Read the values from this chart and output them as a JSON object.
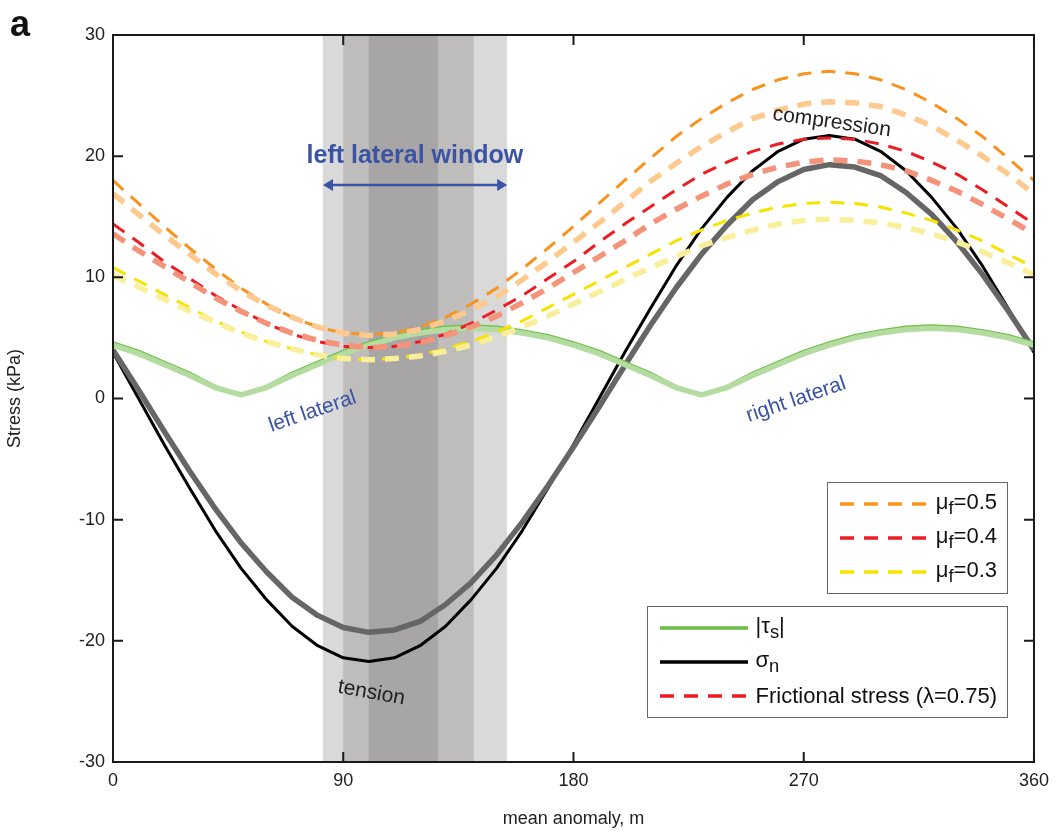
{
  "chart_data": {
    "type": "line",
    "xlabel": "mean anomaly, m",
    "ylabel": "Stress (kPa)",
    "x": [
      0,
      10,
      20,
      30,
      40,
      50,
      60,
      70,
      80,
      90,
      100,
      110,
      120,
      130,
      140,
      150,
      160,
      170,
      180,
      190,
      200,
      210,
      220,
      230,
      240,
      250,
      260,
      270,
      280,
      290,
      300,
      310,
      320,
      330,
      340,
      350,
      360
    ],
    "xlim": [
      0,
      360
    ],
    "xticks": [
      0,
      90,
      180,
      270,
      360
    ],
    "ylim": [
      -30,
      30
    ],
    "yticks": [
      -30,
      -20,
      -10,
      0,
      10,
      20,
      30
    ],
    "grid": false,
    "legend": "bottom right",
    "marker": "none",
    "bands": [
      {
        "axis": "x",
        "from": 82,
        "to": 154,
        "label": "left lateral window",
        "color": "#d9d9d9"
      },
      {
        "axis": "x",
        "from": 90,
        "to": 141,
        "color": "#bfbcbc"
      },
      {
        "axis": "x",
        "from": 100,
        "to": 127,
        "color": "#a8a5a6"
      }
    ],
    "series": [
      {
        "color": "#fdc98f",
        "line_style": "dashed",
        "values": [
          16.9,
          15.2,
          13.5,
          11.9,
          10.3,
          8.9,
          7.7,
          6.7,
          5.9,
          5.4,
          5.2,
          5.3,
          5.7,
          6.4,
          7.3,
          8.4,
          9.8,
          11.3,
          12.9,
          14.5,
          16.2,
          17.9,
          19.4,
          20.8,
          22.0,
          23.1,
          23.8,
          24.3,
          24.5,
          24.4,
          24.1,
          23.4,
          22.5,
          21.3,
          20.0,
          18.5,
          16.9
        ]
      },
      {
        "name": "μ$_{f}$=0.5",
        "color": "#f7931e",
        "line_style": "dashed",
        "values": [
          18.0,
          16.1,
          14.2,
          12.4,
          10.7,
          9.1,
          7.8,
          6.7,
          5.9,
          5.4,
          5.3,
          5.4,
          5.9,
          6.7,
          7.8,
          9.1,
          10.7,
          12.4,
          14.2,
          16.1,
          18.0,
          19.8,
          21.6,
          23.1,
          24.4,
          25.5,
          26.3,
          26.8,
          27.0,
          26.8,
          26.3,
          25.5,
          24.4,
          23.1,
          21.6,
          19.8,
          18.0
        ]
      },
      {
        "color": "#f4937a",
        "line_style": "dashed",
        "values": [
          13.6,
          12.2,
          10.9,
          9.6,
          8.3,
          7.2,
          6.2,
          5.4,
          4.8,
          4.4,
          4.2,
          4.3,
          4.6,
          5.2,
          5.9,
          6.8,
          7.9,
          9.1,
          10.4,
          11.7,
          13.0,
          14.4,
          15.6,
          16.7,
          17.7,
          18.5,
          19.1,
          19.5,
          19.7,
          19.6,
          19.3,
          18.8,
          18.0,
          17.1,
          16.0,
          14.8,
          13.6
        ]
      },
      {
        "name": "μ$_{f}$=0.4",
        "color": "#ec1c24",
        "line_style": "dashed",
        "values": [
          14.4,
          12.9,
          11.3,
          9.9,
          8.5,
          7.3,
          6.2,
          5.3,
          4.7,
          4.3,
          4.2,
          4.3,
          4.7,
          5.3,
          6.2,
          7.3,
          8.5,
          9.9,
          11.3,
          12.9,
          14.4,
          15.8,
          17.2,
          18.5,
          19.5,
          20.4,
          21.0,
          21.4,
          21.5,
          21.4,
          21.0,
          20.4,
          19.5,
          18.5,
          17.2,
          15.8,
          14.4
        ]
      },
      {
        "color": "#f9ee9a",
        "line_style": "dashed",
        "values": [
          10.2,
          9.2,
          8.2,
          7.2,
          6.3,
          5.4,
          4.7,
          4.1,
          3.6,
          3.3,
          3.2,
          3.3,
          3.5,
          3.9,
          4.4,
          5.1,
          5.9,
          6.8,
          7.8,
          8.8,
          9.8,
          10.8,
          11.7,
          12.6,
          13.3,
          13.9,
          14.4,
          14.7,
          14.8,
          14.7,
          14.5,
          14.1,
          13.6,
          12.9,
          12.1,
          11.2,
          10.2
        ]
      },
      {
        "name": "μ$_{f}$=0.3",
        "color": "#f7e300",
        "line_style": "dashed",
        "values": [
          10.8,
          9.7,
          8.6,
          7.5,
          6.4,
          5.5,
          4.7,
          4.1,
          3.6,
          3.3,
          3.2,
          3.3,
          3.6,
          4.1,
          4.7,
          5.5,
          6.4,
          7.5,
          8.6,
          9.7,
          10.8,
          11.9,
          13.0,
          13.9,
          14.7,
          15.3,
          15.8,
          16.1,
          16.2,
          16.1,
          15.8,
          15.3,
          14.7,
          13.9,
          13.0,
          11.9,
          10.8
        ]
      },
      {
        "color": "#b5dca0",
        "line_style": "solid",
        "values": [
          4.4,
          3.7,
          2.8,
          1.9,
          0.9,
          0.3,
          0.9,
          1.9,
          2.8,
          3.7,
          4.4,
          5.0,
          5.4,
          5.7,
          5.8,
          5.7,
          5.4,
          5.0,
          4.4,
          3.7,
          2.8,
          1.9,
          0.9,
          0.3,
          0.9,
          1.9,
          2.8,
          3.7,
          4.4,
          5.0,
          5.4,
          5.7,
          5.8,
          5.7,
          5.4,
          5.0,
          4.4
        ]
      },
      {
        "name": "|τ$_{s}$|",
        "color": "#6abf45",
        "line_style": "solid",
        "values": [
          4.6,
          3.9,
          3.0,
          2.1,
          1.0,
          0.3,
          1.0,
          2.1,
          3.0,
          3.9,
          4.6,
          5.2,
          5.6,
          5.9,
          6.0,
          5.9,
          5.6,
          5.2,
          4.6,
          3.9,
          3.0,
          2.1,
          1.0,
          0.3,
          1.0,
          2.1,
          3.0,
          3.9,
          4.6,
          5.2,
          5.6,
          5.9,
          6.0,
          5.9,
          5.6,
          5.2,
          4.6
        ]
      },
      {
        "color": "#666666",
        "line_style": "solid",
        "values": [
          4.0,
          0.7,
          -2.7,
          -6.0,
          -9.1,
          -11.9,
          -14.3,
          -16.4,
          -17.9,
          -18.9,
          -19.3,
          -19.1,
          -18.4,
          -17.0,
          -15.2,
          -12.9,
          -10.2,
          -7.2,
          -4.0,
          -0.7,
          2.7,
          6.0,
          9.1,
          11.9,
          14.3,
          16.4,
          17.9,
          18.9,
          19.3,
          19.1,
          18.4,
          17.0,
          15.2,
          12.9,
          10.2,
          7.2,
          4.0
        ]
      },
      {
        "name": "σ$_{n}$",
        "color": "#000000",
        "line_style": "solid",
        "values": [
          3.8,
          0,
          -3.8,
          -7.4,
          -10.9,
          -14.0,
          -16.6,
          -18.8,
          -20.4,
          -21.4,
          -21.7,
          -21.4,
          -20.4,
          -18.8,
          -16.6,
          -14.0,
          -10.9,
          -7.4,
          -3.8,
          0,
          3.8,
          7.4,
          10.9,
          14.0,
          16.6,
          18.8,
          20.4,
          21.4,
          21.7,
          21.4,
          20.4,
          18.8,
          16.6,
          14.0,
          10.9,
          7.4,
          3.8
        ]
      }
    ],
    "annotations": [
      "a",
      "compression",
      "tension",
      "left lateral",
      "right lateral",
      "Frictional stress (λ=0.75)"
    ]
  }
}
